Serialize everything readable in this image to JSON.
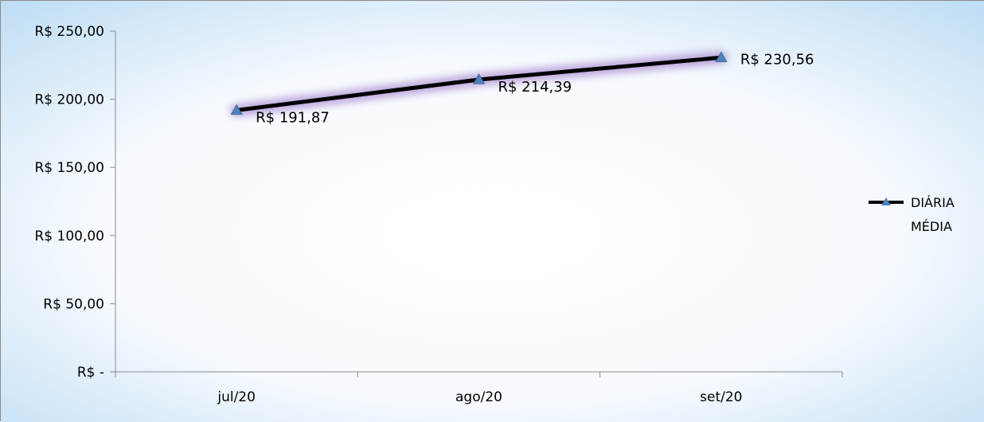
{
  "chart_data": {
    "type": "line",
    "categories": [
      "jul/20",
      "ago/20",
      "set/20"
    ],
    "series": [
      {
        "name": "DIÁRIA MÉDIA",
        "values": [
          191.87,
          214.39,
          230.56
        ],
        "data_labels": [
          "R$ 191,87",
          "R$ 214,39",
          "R$ 230,56"
        ],
        "color": "#000000",
        "marker_color": "#4f81bd",
        "glow_color": "#a98bd0"
      }
    ],
    "ylim": [
      0,
      250
    ],
    "y_ticks": [
      {
        "value": 0,
        "label": "R$ -"
      },
      {
        "value": 50,
        "label": "R$ 50,00"
      },
      {
        "value": 100,
        "label": "R$ 100,00"
      },
      {
        "value": 150,
        "label": "R$ 150,00"
      },
      {
        "value": 200,
        "label": "R$ 200,00"
      },
      {
        "value": 250,
        "label": "R$ 250,00"
      }
    ],
    "grid": false,
    "legend": {
      "position": "right",
      "lines": [
        "DIÁRIA",
        "MÉDIA"
      ]
    },
    "background_colors": [
      "#bcdcf4",
      "#ffffff"
    ]
  }
}
